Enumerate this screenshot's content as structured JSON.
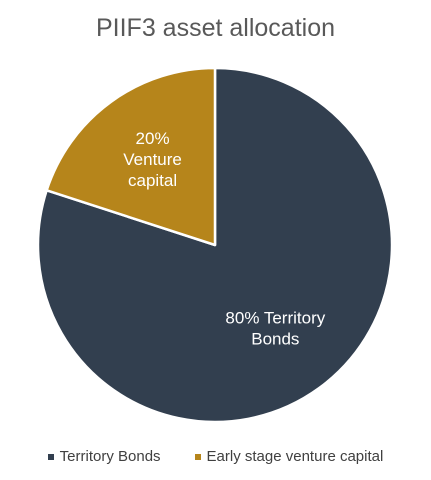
{
  "chart_data": {
    "type": "pie",
    "title": "PIIF3 asset allocation",
    "categories": [
      "Territory Bonds",
      "Early stage venture capital"
    ],
    "values": [
      80,
      20
    ],
    "unit": "%",
    "slice_labels": [
      [
        "80% Territory",
        "Bonds"
      ],
      [
        "20%",
        "Venture",
        "capital"
      ]
    ],
    "colors": [
      "#323f4f",
      "#b6851b"
    ],
    "start_angle_deg": 0,
    "direction": "clockwise",
    "legend_position": "bottom",
    "legend": [
      {
        "label": "Territory Bonds",
        "color": "#323f4f"
      },
      {
        "label": "Early stage venture capital",
        "color": "#b6851b"
      }
    ]
  }
}
